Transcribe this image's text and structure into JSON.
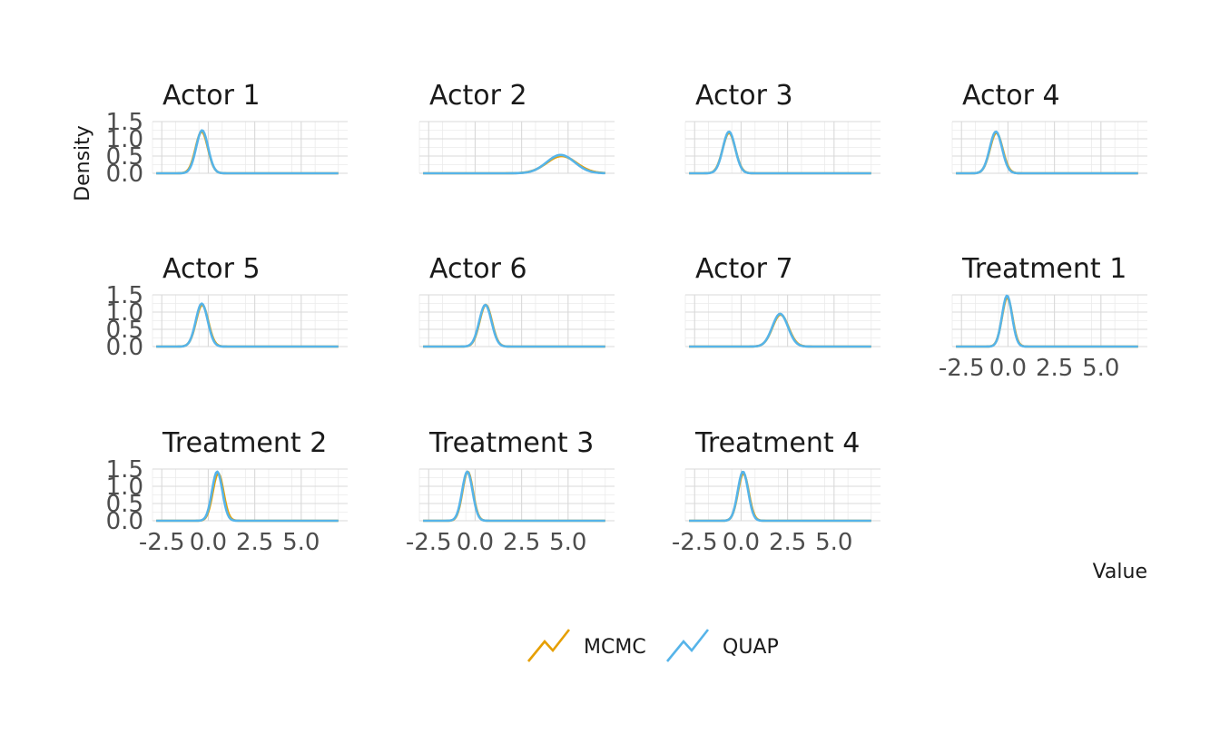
{
  "chart_data": {
    "type": "line",
    "title": "",
    "xlabel": "Value",
    "ylabel": "Density",
    "xlim": [
      -3.0,
      7.5
    ],
    "ylim": [
      0,
      1.5
    ],
    "x_ticks": [
      -2.5,
      0.0,
      2.5,
      5.0
    ],
    "x_tick_labels": [
      "-2.5",
      "0.0",
      "2.5",
      "5.0"
    ],
    "y_ticks": [
      0.0,
      0.5,
      1.0,
      1.5
    ],
    "y_tick_labels": [
      "0.0",
      "0.5",
      "1.0",
      "1.5"
    ],
    "grid": true,
    "legend_position": "bottom",
    "series_styles": [
      {
        "name": "MCMC",
        "color": "#E69F00"
      },
      {
        "name": "QUAP",
        "color": "#56B4E9"
      }
    ],
    "panels": [
      {
        "title": "Actor 1",
        "x_peak": -0.35,
        "mcmc": {
          "mean": -0.35,
          "sd": 0.33
        },
        "quap": {
          "mean": -0.33,
          "sd": 0.32
        }
      },
      {
        "title": "Actor 2",
        "x_peak": 4.6,
        "mcmc": {
          "mean": 4.65,
          "sd": 0.8
        },
        "quap": {
          "mean": 4.6,
          "sd": 0.75
        }
      },
      {
        "title": "Actor 3",
        "x_peak": -0.65,
        "mcmc": {
          "mean": -0.65,
          "sd": 0.34
        },
        "quap": {
          "mean": -0.65,
          "sd": 0.33
        }
      },
      {
        "title": "Actor 4",
        "x_peak": -0.65,
        "mcmc": {
          "mean": -0.63,
          "sd": 0.34
        },
        "quap": {
          "mean": -0.65,
          "sd": 0.33
        }
      },
      {
        "title": "Actor 5",
        "x_peak": -0.35,
        "mcmc": {
          "mean": -0.33,
          "sd": 0.33
        },
        "quap": {
          "mean": -0.35,
          "sd": 0.32
        }
      },
      {
        "title": "Actor 6",
        "x_peak": 0.55,
        "mcmc": {
          "mean": 0.57,
          "sd": 0.33
        },
        "quap": {
          "mean": 0.55,
          "sd": 0.33
        }
      },
      {
        "title": "Actor 7",
        "x_peak": 2.1,
        "mcmc": {
          "mean": 2.12,
          "sd": 0.43
        },
        "quap": {
          "mean": 2.1,
          "sd": 0.42
        }
      },
      {
        "title": "Treatment 1",
        "x_peak": -0.05,
        "mcmc": {
          "mean": -0.04,
          "sd": 0.28
        },
        "quap": {
          "mean": -0.05,
          "sd": 0.27
        }
      },
      {
        "title": "Treatment 2",
        "x_peak": 0.5,
        "mcmc": {
          "mean": 0.53,
          "sd": 0.29
        },
        "quap": {
          "mean": 0.48,
          "sd": 0.28
        }
      },
      {
        "title": "Treatment 3",
        "x_peak": -0.4,
        "mcmc": {
          "mean": -0.4,
          "sd": 0.28
        },
        "quap": {
          "mean": -0.42,
          "sd": 0.28
        }
      },
      {
        "title": "Treatment 4",
        "x_peak": 0.1,
        "mcmc": {
          "mean": 0.12,
          "sd": 0.29
        },
        "quap": {
          "mean": 0.1,
          "sd": 0.28
        }
      }
    ]
  }
}
